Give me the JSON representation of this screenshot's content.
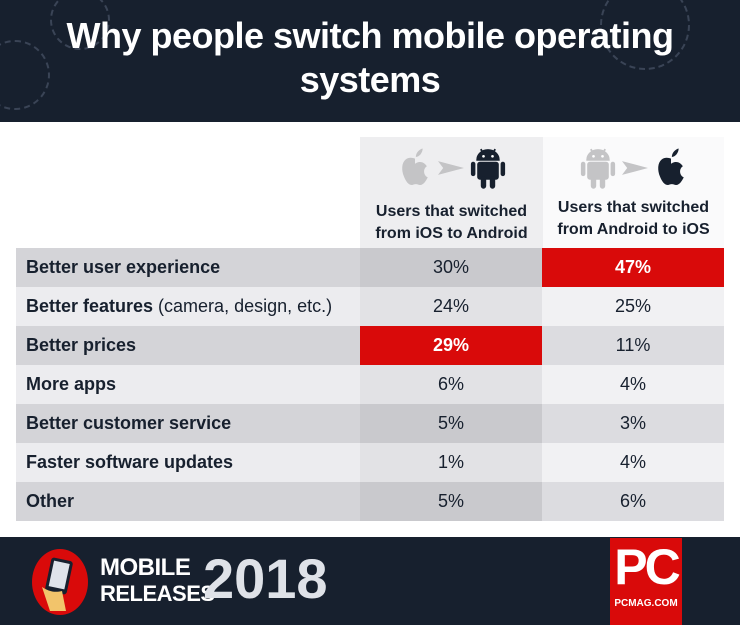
{
  "title": "Why people switch mobile operating systems",
  "colors": {
    "dark": "#17202e",
    "highlight": "#d90a0a",
    "row_dark": "#d2d2d6",
    "row_light": "#ececef"
  },
  "chart_data": {
    "type": "table",
    "columns": [
      {
        "label": "Users that switched from iOS to Android",
        "label_line1": "Users that switched",
        "label_line2": "from iOS to Android",
        "icons": [
          "apple-icon",
          "arrow-icon",
          "android-icon"
        ]
      },
      {
        "label": "Users that switched from Android to iOS",
        "label_line1": "Users that switched",
        "label_line2": "from Android to iOS",
        "icons": [
          "android-icon",
          "arrow-icon",
          "apple-icon"
        ]
      }
    ],
    "rows": [
      {
        "label": "Better user experience",
        "note": "",
        "values": [
          "30%",
          "47%"
        ],
        "highlight": 1
      },
      {
        "label": "Better features",
        "note": " (camera, design, etc.)",
        "values": [
          "24%",
          "25%"
        ],
        "highlight": -1
      },
      {
        "label": "Better prices",
        "note": "",
        "values": [
          "29%",
          "11%"
        ],
        "highlight": 0
      },
      {
        "label": "More apps",
        "note": "",
        "values": [
          "6%",
          "4%"
        ],
        "highlight": -1
      },
      {
        "label": "Better customer service",
        "note": "",
        "values": [
          "5%",
          "3%"
        ],
        "highlight": -1
      },
      {
        "label": "Faster software updates",
        "note": "",
        "values": [
          "1%",
          "4%"
        ],
        "highlight": -1
      },
      {
        "label": "Other",
        "note": "",
        "values": [
          "5%",
          "6%"
        ],
        "highlight": -1
      }
    ]
  },
  "footer": {
    "line1": "MOBILE",
    "line2": "RELEASES",
    "year": "2018",
    "logo": "PC",
    "logo_sub": "PCMAG.COM"
  }
}
